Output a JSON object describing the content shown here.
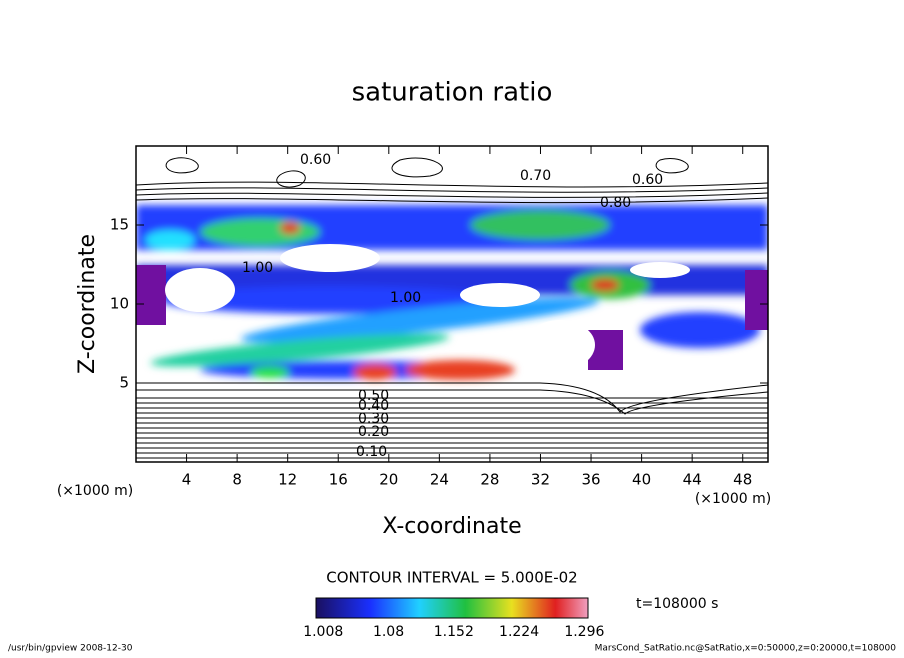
{
  "chart_data": {
    "type": "contour",
    "title": "saturation ratio",
    "x_label": "X-coordinate",
    "y_label": "Z-coordinate",
    "x_unit": "(×1000 m)",
    "y_unit": "(×1000 m)",
    "xlim": [
      0,
      50
    ],
    "xticks": [
      4,
      8,
      12,
      16,
      20,
      24,
      28,
      32,
      36,
      40,
      44,
      48
    ],
    "ylim": [
      0,
      20
    ],
    "yticks": [
      5,
      10,
      15
    ],
    "contour_labels": [
      "0.60",
      "0.70",
      "0.80",
      "0.60",
      "1.00",
      "1.00",
      "0.50",
      "0.40",
      "0.30",
      "0.20",
      "0.10"
    ],
    "contour_interval": "CONTOUR INTERVAL = 5.000E-02",
    "colorbar": {
      "lim": [
        1.0,
        1.3
      ],
      "ticks": [
        1.008,
        1.08,
        1.152,
        1.224,
        1.296
      ]
    },
    "time_label": "t=108000 s",
    "footer_left": "/usr/bin/gpview  2008-12-30",
    "footer_right": "MarsCond_SatRatio.nc@SatRatio,x=0:50000,z=0:20000,t=108000"
  }
}
